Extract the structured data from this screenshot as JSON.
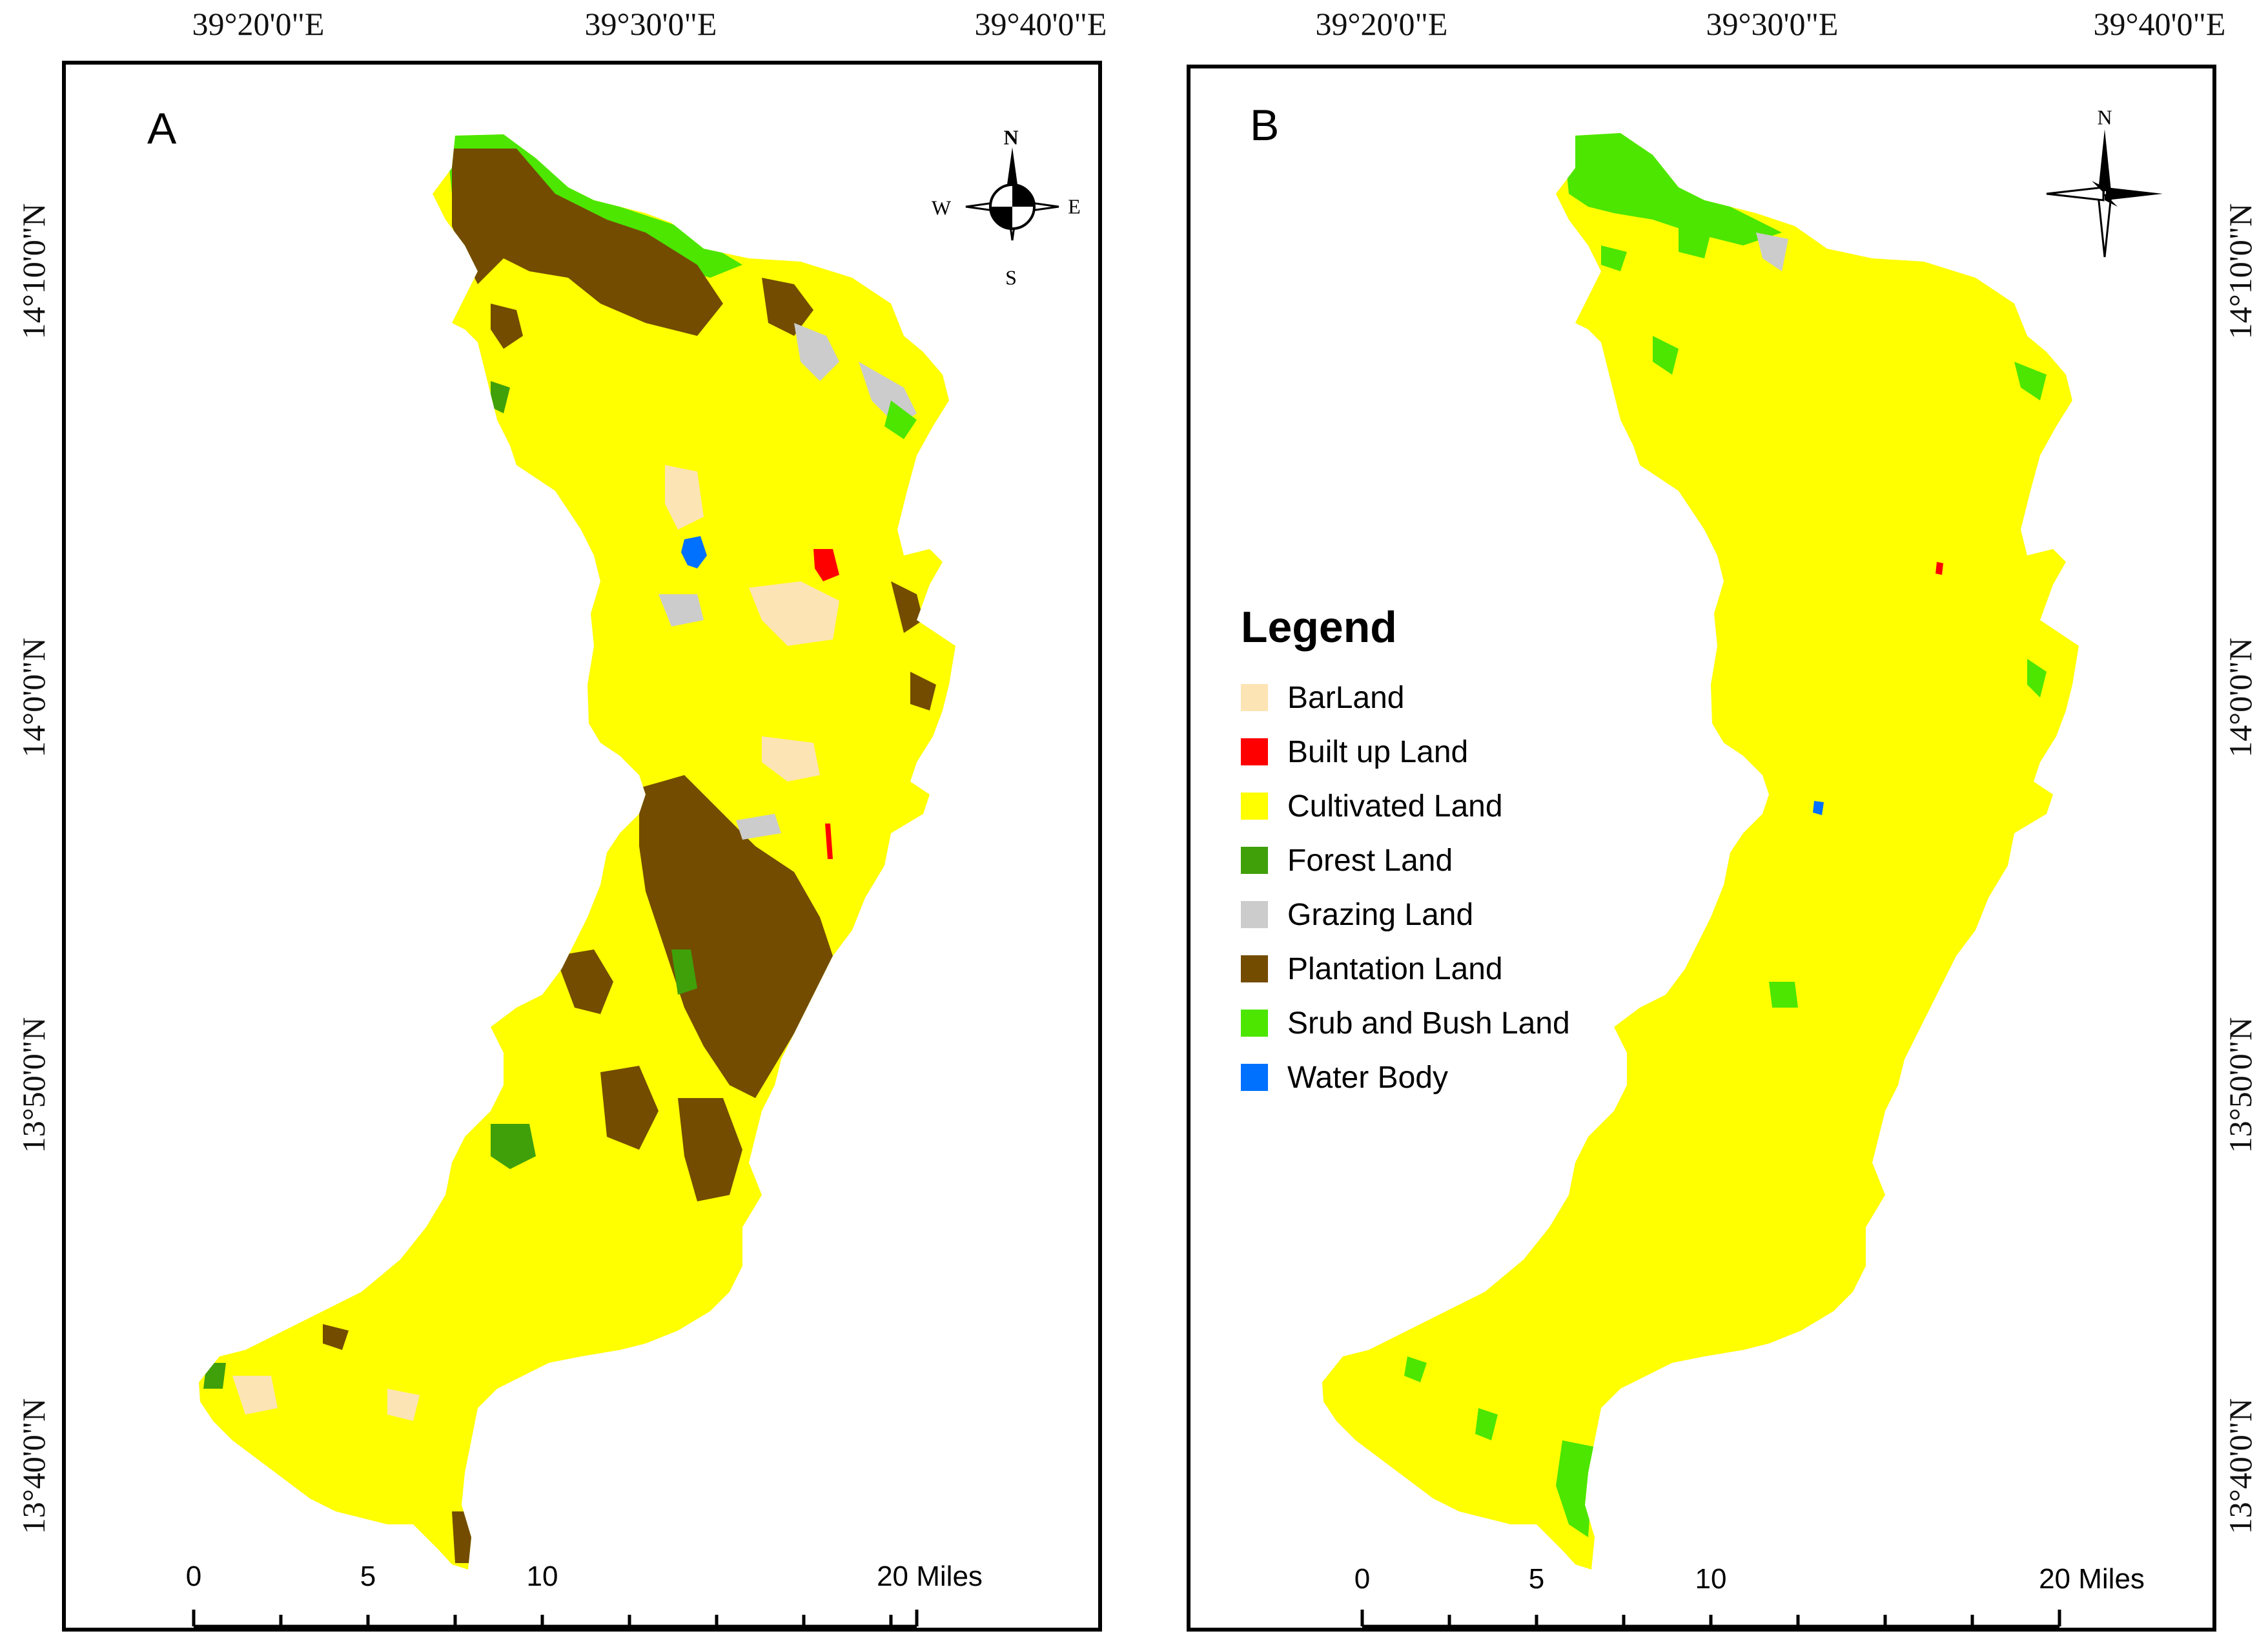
{
  "coords": {
    "top_left": [
      "39°20'0\"E",
      "39°30'0\"E",
      "39°40'0\"E"
    ],
    "top_right": [
      "39°20'0\"E",
      "39°30'0\"E",
      "39°40'0\"E"
    ],
    "lat_left": [
      "14°10'0\"N",
      "14°0'0\"N",
      "13°50'0\"N",
      "13°40'0\"N"
    ],
    "lat_right": [
      "14°10'0\"N",
      "14°0'0\"N",
      "13°50'0\"N",
      "13°40'0\"N"
    ]
  },
  "panels": {
    "a": {
      "label": "A"
    },
    "b": {
      "label": "B"
    }
  },
  "compass_a": {
    "n": "N",
    "s": "S",
    "e": "E",
    "w": "W"
  },
  "compass_b": {
    "n": "N"
  },
  "scalebar": {
    "ticks": [
      "0",
      "5",
      "10",
      "20 Miles"
    ]
  },
  "legend": {
    "title": "Legend",
    "items": [
      {
        "label": "BarLand",
        "color": "#FCE4B4"
      },
      {
        "label": "Built up Land",
        "color": "#FF0000"
      },
      {
        "label": "Cultivated Land",
        "color": "#FFFF00"
      },
      {
        "label": "Forest Land",
        "color": "#3FA00A"
      },
      {
        "label": "Grazing Land",
        "color": "#CCCCCC"
      },
      {
        "label": "Plantation Land",
        "color": "#734C00"
      },
      {
        "label": "Srub and Bush Land",
        "color": "#4CE600"
      },
      {
        "label": "Water Body",
        "color": "#0070FF"
      }
    ]
  }
}
